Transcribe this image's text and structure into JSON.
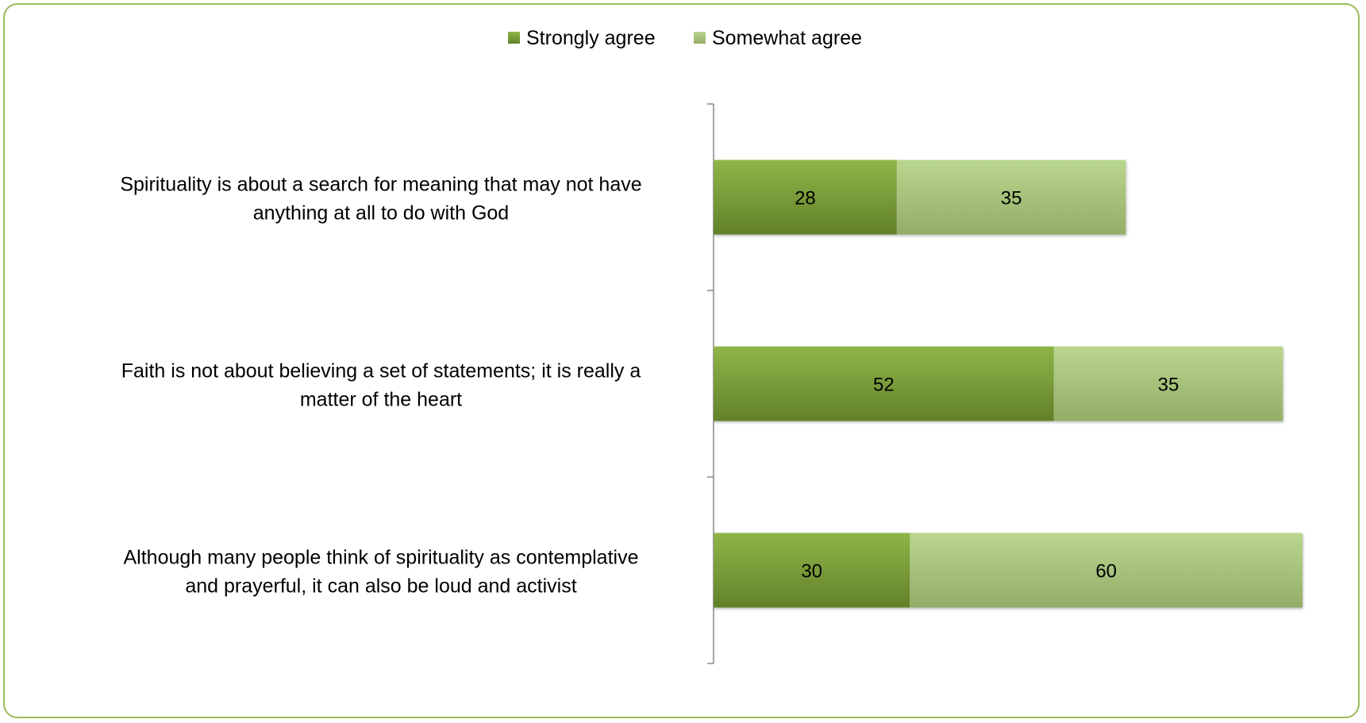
{
  "chart_data": {
    "type": "bar",
    "orientation": "horizontal",
    "stacked": true,
    "title": "",
    "xlabel": "",
    "ylabel": "",
    "categories": [
      "Spirituality is about a search for meaning that may not have anything at all to do with God",
      "Faith is not about believing a set of statements; it is really a matter of the heart",
      "Although many people think of spirituality as contemplative and prayerful, it can also be loud and activist"
    ],
    "category_lines": [
      [
        "Spirituality is about a search for meaning that may not have",
        "anything at all to do with God"
      ],
      [
        "Faith is not about believing a set of statements; it is really a",
        "matter of the heart"
      ],
      [
        "Although many people think of spirituality as contemplative",
        "and prayerful, it can also be loud and activist"
      ]
    ],
    "series": [
      {
        "name": "Strongly agree",
        "values": [
          28,
          52,
          30
        ],
        "color": "#77933c"
      },
      {
        "name": "Somewhat agree",
        "values": [
          35,
          35,
          60
        ],
        "color": "#a9c47f"
      }
    ],
    "xlim": [
      0,
      90
    ],
    "data_labels": true,
    "grid": false,
    "legend_position": "top"
  }
}
